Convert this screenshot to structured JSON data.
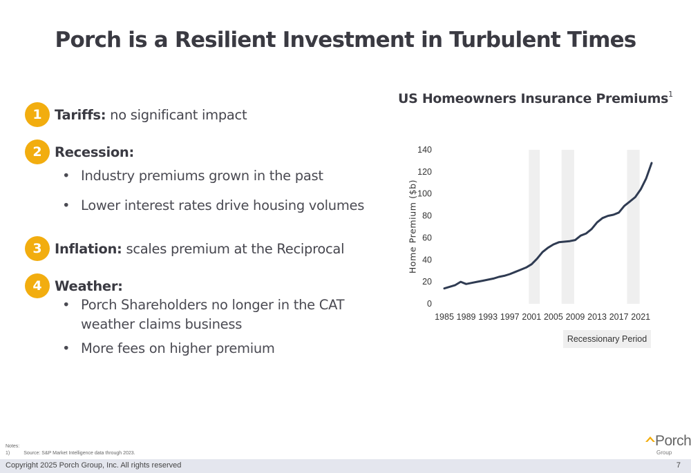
{
  "slide": {
    "title": "Porch is a Resilient Investment in Turbulent Times"
  },
  "points": [
    {
      "number": "1",
      "heading": "Tariffs:",
      "text": " no significant impact"
    },
    {
      "number": "2",
      "heading": "Recession:",
      "text": "",
      "bullets": [
        "Industry premiums grown in the past",
        "Lower interest rates drive housing volumes"
      ]
    },
    {
      "number": "3",
      "heading": "Inflation:",
      "text": " scales premium at the Reciprocal"
    },
    {
      "number": "4",
      "heading": "Weather:",
      "text": "",
      "bullets": [
        "Porch Shareholders no longer in the CAT",
        "weather claims business",
        "More fees on higher premium"
      ]
    }
  ],
  "chart_data": {
    "type": "line",
    "title": "US Homeowners Insurance Premiums",
    "title_footnote": "1",
    "xlabel": "",
    "ylabel": "Home Premium ($b)",
    "ylim": [
      0,
      140
    ],
    "yticks": [
      "0",
      "20",
      "40",
      "60",
      "80",
      "100",
      "120",
      "140"
    ],
    "xticks": [
      "1985",
      "1989",
      "1993",
      "1997",
      "2001",
      "2005",
      "2009",
      "2013",
      "2017",
      "2021"
    ],
    "xlim": [
      1985,
      2023
    ],
    "grid": false,
    "line_color": "#2f3b52",
    "shade_color": "#efefef",
    "recession_periods": [
      [
        2000.5,
        2002.5
      ],
      [
        2006.5,
        2008.8
      ],
      [
        2018.5,
        2020.8
      ]
    ],
    "legend": "Recessionary Period",
    "legend_placement": "bottom-right",
    "series": [
      {
        "x": [
          1985,
          1986,
          1987,
          1988,
          1989,
          1990,
          1991,
          1992,
          1993,
          1994,
          1995,
          1996,
          1997,
          1998,
          1999,
          2000,
          2001,
          2002,
          2003,
          2004,
          2005,
          2006,
          2007,
          2008,
          2009,
          2010,
          2011,
          2012,
          2013,
          2014,
          2015,
          2016,
          2017,
          2018,
          2019,
          2020,
          2021,
          2022,
          2023
        ],
        "values": [
          14,
          15.5,
          17,
          20,
          18,
          19,
          20,
          21,
          22,
          23,
          24.5,
          25.5,
          27,
          29,
          31,
          33,
          36,
          41,
          47,
          51,
          54,
          56,
          56.5,
          57,
          58,
          62,
          64,
          68,
          74,
          78,
          80,
          81,
          83,
          89,
          93,
          97,
          104,
          114,
          128
        ]
      }
    ]
  },
  "notes": {
    "heading": "Notes:",
    "marker": "1)",
    "source": "Source:  S&P Market Intelligence data through 2023."
  },
  "logo": {
    "word": "Porch",
    "sub": "Group",
    "accent": "#f2ad0f"
  },
  "footer": {
    "copyright": "Copyright 2025 Porch Group, Inc. All rights reserved",
    "page_number": "7"
  }
}
